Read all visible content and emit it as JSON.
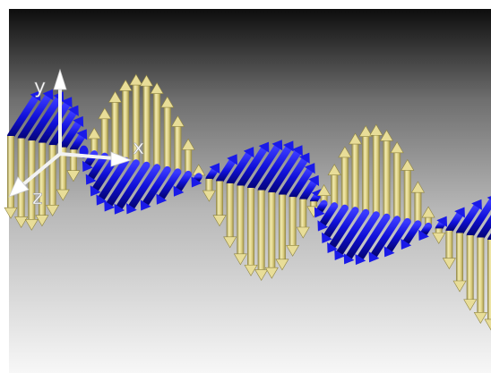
{
  "axes": {
    "x_label": "x",
    "y_label": "y",
    "z_label": "z"
  },
  "colors": {
    "background_top": "#111111",
    "background_bottom": "#ffffff",
    "electric_field": "#e6d98a",
    "magnetic_field": "#1414e0",
    "axes": "#ffffff"
  }
}
